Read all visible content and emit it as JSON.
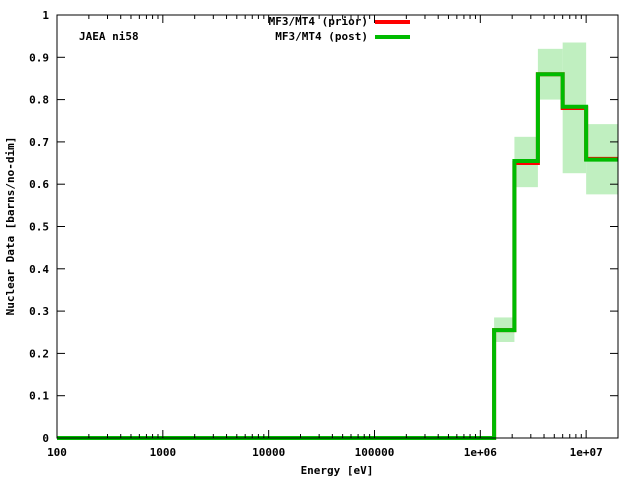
{
  "chart_data": {
    "type": "line",
    "annotation": "JAEA ni58",
    "xlabel": "Energy [eV]",
    "ylabel": "Nuclear Data [barns/no-dim]",
    "x_scale": "log",
    "xlim": [
      100,
      20000000
    ],
    "ylim": [
      0,
      1
    ],
    "grid": false,
    "legend_position": "top-center",
    "x_ticks": [
      {
        "value": 100,
        "label": "100"
      },
      {
        "value": 1000,
        "label": "1000"
      },
      {
        "value": 10000,
        "label": "10000"
      },
      {
        "value": 100000,
        "label": "100000"
      },
      {
        "value": 1000000,
        "label": "1e+06"
      },
      {
        "value": 10000000,
        "label": "1e+07"
      }
    ],
    "y_ticks": [
      {
        "value": 0,
        "label": "0"
      },
      {
        "value": 0.1,
        "label": "0.1"
      },
      {
        "value": 0.2,
        "label": "0.2"
      },
      {
        "value": 0.3,
        "label": "0.3"
      },
      {
        "value": 0.4,
        "label": "0.4"
      },
      {
        "value": 0.5,
        "label": "0.5"
      },
      {
        "value": 0.6,
        "label": "0.6"
      },
      {
        "value": 0.7,
        "label": "0.7"
      },
      {
        "value": 0.8,
        "label": "0.8"
      },
      {
        "value": 0.9,
        "label": "0.9"
      },
      {
        "value": 1,
        "label": "1"
      }
    ],
    "bin_edges": [
      100,
      1350000,
      2100000,
      3500000,
      6000000,
      10000000,
      20000000
    ],
    "series": [
      {
        "name": "MF3/MT4 (prior)",
        "color": "#ff0000",
        "values": [
          0,
          0.255,
          0.65,
          0.86,
          0.78,
          0.66
        ]
      },
      {
        "name": "MF3/MT4 (post)",
        "color": "#00bb00",
        "values": [
          0,
          0.255,
          0.655,
          0.86,
          0.783,
          0.658
        ]
      }
    ],
    "uncertainty_band": {
      "color": "#c0efc0",
      "lower": [
        0,
        0.227,
        0.593,
        0.8,
        0.626,
        0.576
      ],
      "upper": [
        0,
        0.285,
        0.712,
        0.92,
        0.935,
        0.742
      ]
    }
  }
}
